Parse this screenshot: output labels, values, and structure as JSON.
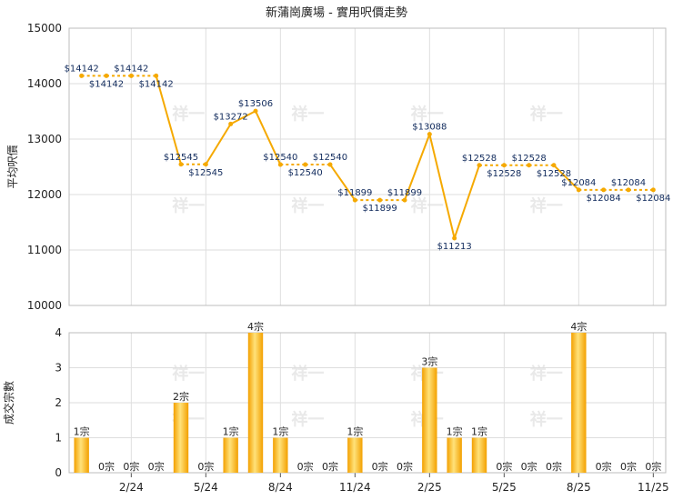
{
  "chart_data": [
    {
      "type": "line",
      "title": "新蒲崗廣場 - 實用呎價走勢",
      "ylabel": "平均呎價",
      "ylim": [
        10000,
        15000
      ],
      "yticks": [
        10000,
        11000,
        12000,
        13000,
        14000,
        15000
      ],
      "grid": true,
      "color": "#f5a900",
      "series": [
        {
          "values": [
            14142,
            14142,
            14142,
            14142,
            12545,
            12545,
            13272,
            13506,
            12540,
            12540,
            12540,
            11899,
            11899,
            11899,
            13088,
            11213,
            12528,
            12528,
            12528,
            12528,
            12084,
            12084,
            12084,
            12084
          ],
          "labels": [
            "$14142",
            "$14142",
            "$14142",
            "$14142",
            "$12545",
            "$12545",
            "$13272",
            "$13506",
            "$12540",
            "$12540",
            "$12540",
            "$11899",
            "$11899",
            "$11899",
            "$13088",
            "$11213",
            "$12528",
            "$12528",
            "$12528",
            "$12528",
            "$12084",
            "$12084",
            "$12084",
            "$12084"
          ],
          "label_pos": [
            "above",
            "below",
            "above",
            "below",
            "above",
            "below",
            "above",
            "above",
            "above",
            "below",
            "above",
            "above",
            "below",
            "above",
            "above",
            "below",
            "above",
            "below",
            "above",
            "below",
            "above",
            "below",
            "above",
            "below"
          ]
        }
      ]
    },
    {
      "type": "bar",
      "ylabel": "成交宗數",
      "ylim": [
        0,
        4
      ],
      "yticks": [
        0,
        1,
        2,
        3,
        4
      ],
      "x_tick_labels": [
        "2/24",
        "5/24",
        "8/24",
        "11/24",
        "2/25",
        "5/25",
        "8/25",
        "11/25"
      ],
      "x_tick_at_index": [
        2,
        5,
        8,
        11,
        14,
        17,
        20,
        23
      ],
      "grid": true,
      "color": "#f5a900",
      "values": [
        1,
        0,
        0,
        0,
        2,
        0,
        1,
        4,
        1,
        0,
        0,
        1,
        0,
        0,
        3,
        1,
        1,
        0,
        0,
        0,
        4,
        0,
        0,
        0
      ],
      "labels": [
        "1宗",
        "0宗",
        "0宗",
        "0宗",
        "2宗",
        "0宗",
        "1宗",
        "4宗",
        "1宗",
        "0宗",
        "0宗",
        "1宗",
        "0宗",
        "0宗",
        "3宗",
        "1宗",
        "1宗",
        "0宗",
        "0宗",
        "0宗",
        "4宗",
        "0宗",
        "0宗",
        "0宗"
      ]
    }
  ],
  "watermark": "祥一"
}
